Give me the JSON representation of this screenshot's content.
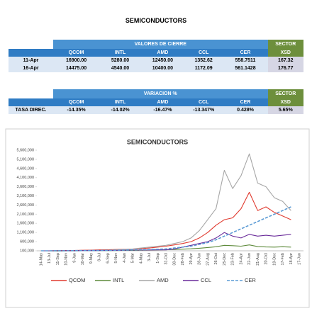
{
  "title": "SEMICONDUCTORS",
  "table1": {
    "group_header": "VALORES DE CIERRE",
    "sector_header": "SECTOR",
    "columns": [
      "QCOM",
      "INTL",
      "AMD",
      "CCL",
      "CER",
      "XSD"
    ],
    "rows": [
      [
        "11-Apr",
        "16900.00",
        "5280.00",
        "12450.00",
        "1352.62",
        "558.7511",
        "167.32"
      ],
      [
        "16-Apr",
        "14475.00",
        "4540.00",
        "10400.00",
        "1172.09",
        "561.1428",
        "176.77"
      ]
    ]
  },
  "table2": {
    "group_header": "VARIACION %",
    "sector_header": "SECTOR",
    "columns": [
      "QCOM",
      "INTL",
      "AMD",
      "CCL",
      "CER",
      "XSD"
    ],
    "rows": [
      [
        "TASA DIREC.",
        "-14.35%",
        "-14.02%",
        "-16.47%",
        "-13.347%",
        "0.428%",
        "5.65%"
      ]
    ]
  },
  "chart_data": {
    "type": "line",
    "title": "SEMICONDUCTORS",
    "categories": [
      "14-May",
      "13-Jul",
      "11-Sep",
      "10-Nov",
      "9-Jan",
      "10-Mar",
      "9-May",
      "8-Jul",
      "6-Sep",
      "5-Nov",
      "4-Jan",
      "5-Mar",
      "4-May",
      "3-Jul",
      "1-Sep",
      "31-Oct",
      "30-Dec",
      "28-Feb",
      "29-Apr",
      "28-Jun",
      "27-Aug",
      "26-Oct",
      "25-Dec",
      "23-Feb",
      "24-Apr",
      "22-Jun",
      "21-Aug",
      "20-Oct",
      "19-Dec",
      "17-Feb",
      "18-Apr",
      "17-Jun"
    ],
    "series": [
      {
        "name": "QCOM",
        "color": "#e03a2f",
        "values": [
          100000,
          100000,
          110000,
          120000,
          120000,
          130000,
          140000,
          150000,
          160000,
          170000,
          180000,
          190000,
          220000,
          250000,
          300000,
          350000,
          420000,
          500000,
          600000,
          800000,
          1100000,
          1500000,
          1800000,
          1900000,
          2400000,
          3300000,
          2300000,
          2500000,
          2200000,
          2000000,
          1800000,
          null
        ]
      },
      {
        "name": "INTL",
        "color": "#5d8a3a",
        "values": [
          100000,
          95000,
          90000,
          95000,
          100000,
          100000,
          105000,
          110000,
          110000,
          115000,
          120000,
          125000,
          130000,
          140000,
          150000,
          160000,
          170000,
          190000,
          210000,
          240000,
          280000,
          320000,
          400000,
          380000,
          350000,
          420000,
          330000,
          310000,
          300000,
          320000,
          300000,
          null
        ]
      },
      {
        "name": "AMD",
        "color": "#a6a6a6",
        "values": [
          100000,
          100000,
          110000,
          100000,
          90000,
          100000,
          110000,
          120000,
          130000,
          150000,
          170000,
          200000,
          250000,
          300000,
          350000,
          400000,
          500000,
          600000,
          800000,
          1200000,
          1800000,
          2400000,
          4500000,
          3500000,
          4200000,
          5400000,
          3800000,
          3600000,
          3000000,
          2800000,
          2300000,
          null
        ]
      },
      {
        "name": "CCL",
        "color": "#6a2c9a",
        "values": [
          100000,
          100000,
          100000,
          105000,
          105000,
          110000,
          110000,
          115000,
          120000,
          125000,
          130000,
          135000,
          140000,
          145000,
          150000,
          150000,
          200000,
          300000,
          400000,
          500000,
          600000,
          800000,
          1100000,
          900000,
          800000,
          1000000,
          900000,
          950000,
          900000,
          950000,
          1000000,
          null
        ]
      },
      {
        "name": "CER",
        "color": "#5b9bd5",
        "dashed": true,
        "values": [
          100000,
          100000,
          105000,
          105000,
          110000,
          110000,
          115000,
          120000,
          125000,
          130000,
          140000,
          150000,
          160000,
          170000,
          185000,
          200000,
          250000,
          300000,
          350000,
          450000,
          550000,
          700000,
          900000,
          1100000,
          1300000,
          1500000,
          1700000,
          1900000,
          2100000,
          2300000,
          2500000,
          null
        ]
      }
    ],
    "ylim": [
      100000,
      5600000
    ],
    "yticks": [
      {
        "value": 100000,
        "label": "100,000"
      },
      {
        "value": 600000,
        "label": "600,000"
      },
      {
        "value": 1100000,
        "label": "1,100,000"
      },
      {
        "value": 1600000,
        "label": "1,600,000"
      },
      {
        "value": 2100000,
        "label": "2,100,000"
      },
      {
        "value": 2600000,
        "label": "2,600,000"
      },
      {
        "value": 3100000,
        "label": "3,100,000"
      },
      {
        "value": 3600000,
        "label": "3,600,000"
      },
      {
        "value": 4100000,
        "label": "4,100,000"
      },
      {
        "value": 4600000,
        "label": "4,600,000"
      },
      {
        "value": 5100000,
        "label": "5,100,000"
      },
      {
        "value": 5600000,
        "label": "5,600,000"
      }
    ],
    "grid": false,
    "legend": "bottom"
  }
}
